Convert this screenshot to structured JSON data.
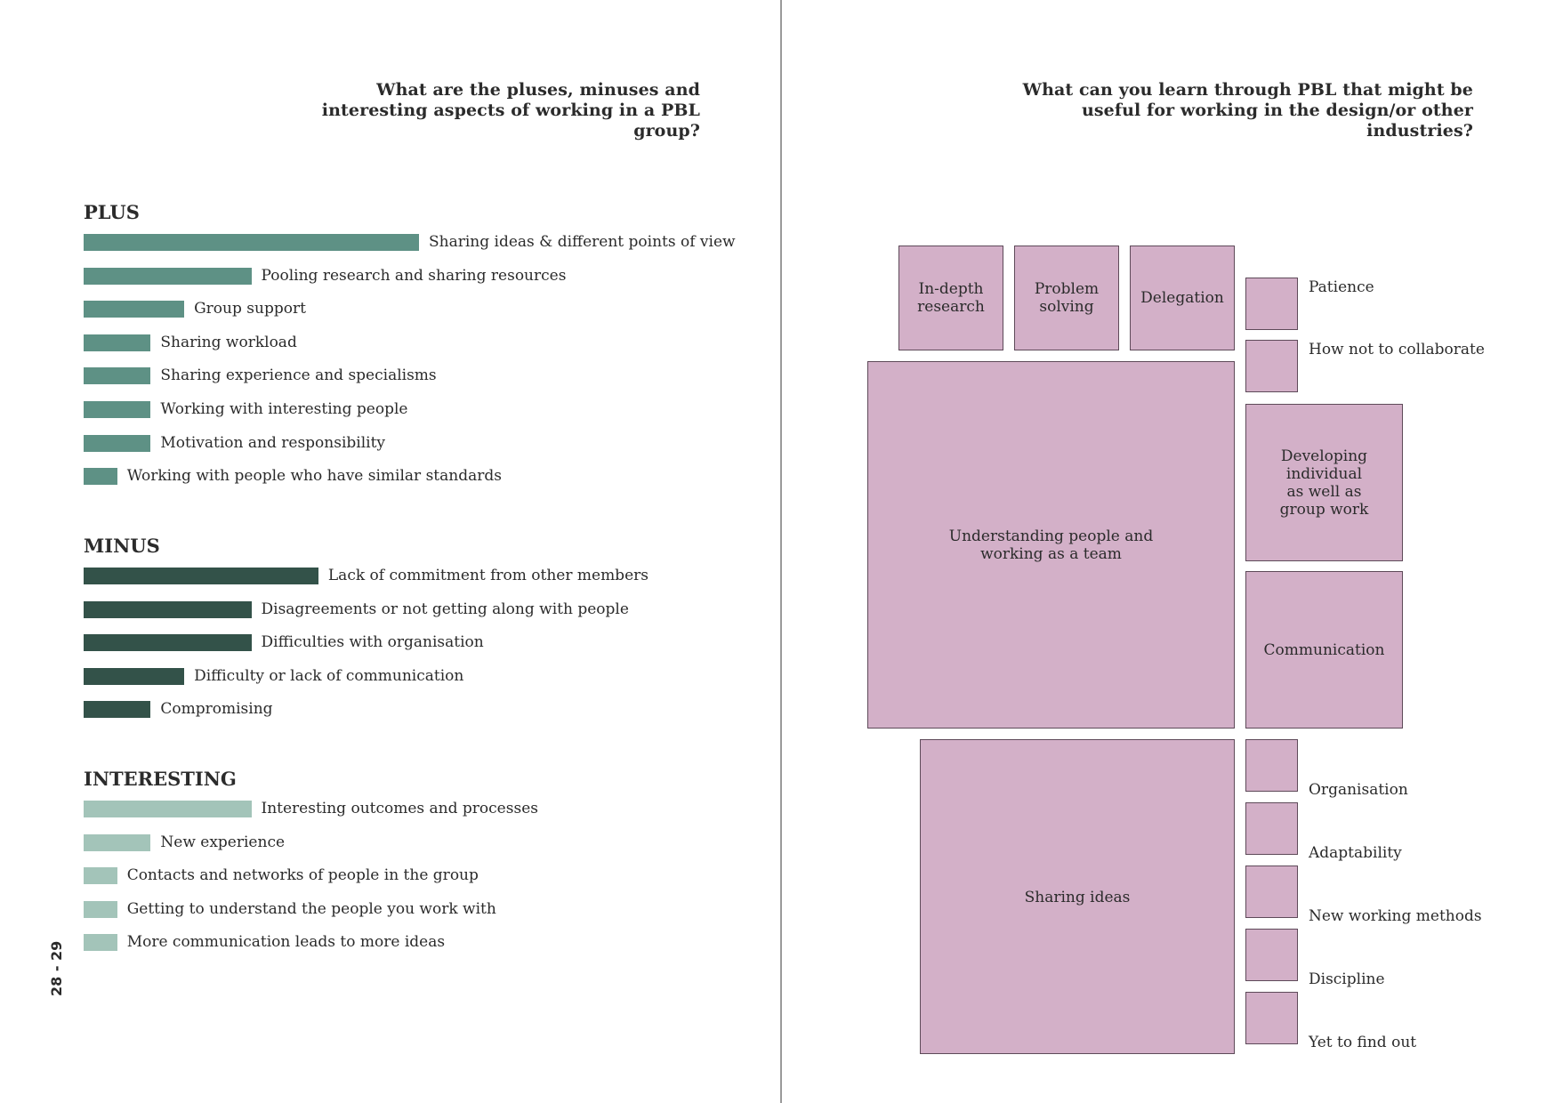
{
  "left_page": {
    "question": "What are the  pluses, minuses and interesting aspects of working in a PBL group?",
    "colors": {
      "plus": "#5e9185",
      "minus": "#335249",
      "interesting": "#a3c4b9"
    }
  },
  "right_page": {
    "question": "What can you learn through PBL that might be useful for working in the design/or other industries?",
    "box_color": "#d3b0c8"
  },
  "page_number": "28 - 29",
  "chart_data": [
    {
      "type": "bar",
      "orientation": "horizontal",
      "xlim": [
        0,
        10
      ],
      "groups": [
        {
          "title": "PLUS",
          "categories": [
            "Sharing ideas & different points of view",
            "Pooling research and sharing resources",
            "Group support",
            "Sharing workload",
            "Sharing experience and specialisms",
            "Working with interesting people",
            "Motivation and responsibility",
            "Working with people who have similar standards"
          ],
          "values": [
            10,
            5,
            3,
            2,
            2,
            2,
            2,
            1
          ]
        },
        {
          "title": "MINUS",
          "categories": [
            "Lack of commitment from other members",
            "Disagreements or not getting along with people",
            "Difficulties with organisation",
            "Difficulty or lack of communication",
            "Compromising"
          ],
          "values": [
            7,
            5,
            5,
            3,
            2
          ]
        },
        {
          "title": "INTERESTING",
          "categories": [
            "Interesting outcomes and processes",
            "New experience",
            "Contacts and networks of people in the group",
            "Getting to understand the people you work with",
            "More communication leads to more ideas"
          ],
          "values": [
            5,
            2,
            1,
            1,
            1
          ]
        }
      ]
    },
    {
      "type": "treemap",
      "items": [
        {
          "label": "In-depth\nresearch",
          "value": 4
        },
        {
          "label": "Problem\nsolving",
          "value": 4
        },
        {
          "label": "Delegation",
          "value": 4
        },
        {
          "label": "Patience",
          "value": 1
        },
        {
          "label": "How not to collaborate",
          "value": 1
        },
        {
          "label": "Understanding people and\nworking as a team",
          "value": 49
        },
        {
          "label": "Developing\nindividual\nas well as\ngroup work",
          "value": 9
        },
        {
          "label": "Communication",
          "value": 9
        },
        {
          "label": "Sharing ideas",
          "value": 36
        },
        {
          "label": "Organisation",
          "value": 1
        },
        {
          "label": "Adaptability",
          "value": 1
        },
        {
          "label": "New working methods",
          "value": 1
        },
        {
          "label": "Discipline",
          "value": 1
        },
        {
          "label": "Yet to find out",
          "value": 1
        }
      ]
    }
  ]
}
